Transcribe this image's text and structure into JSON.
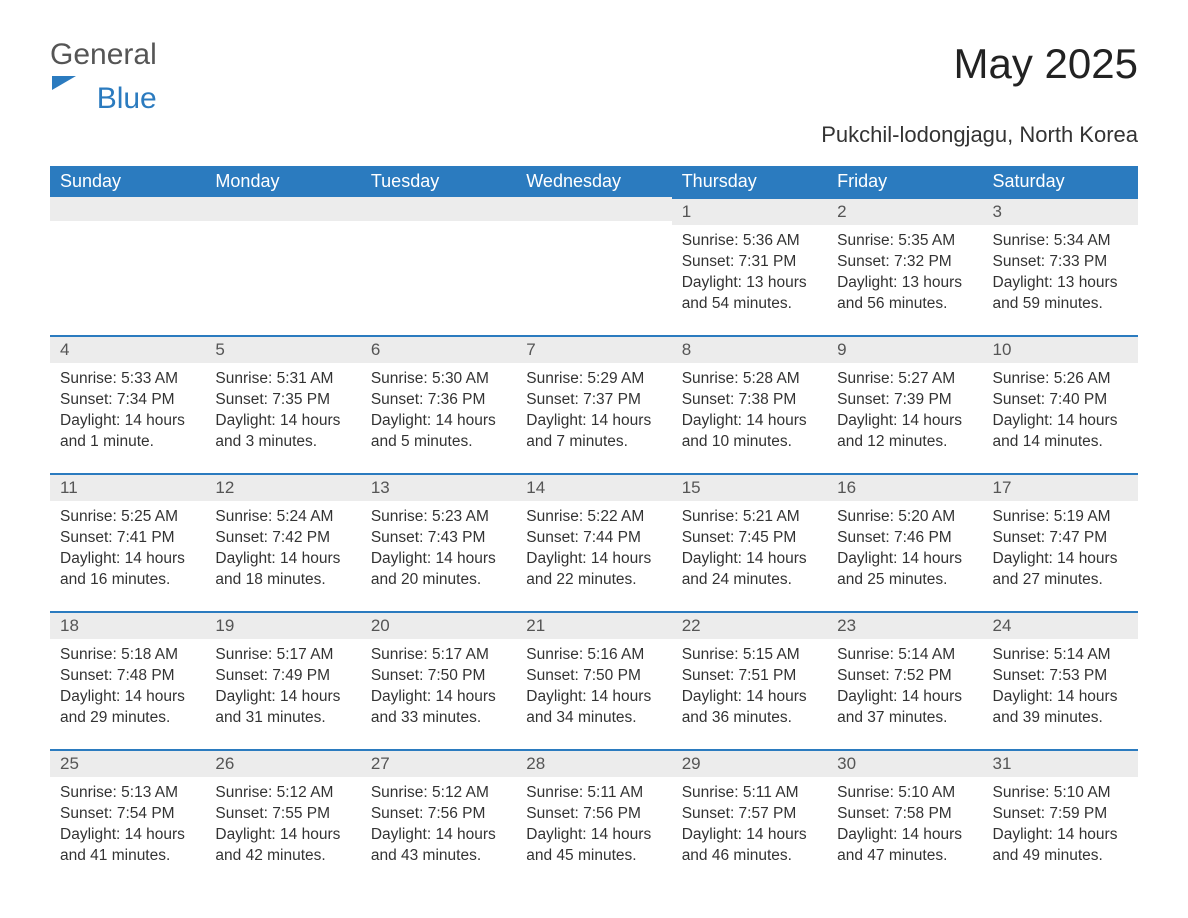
{
  "logo": {
    "text_general": "General",
    "text_blue": "Blue"
  },
  "title": "May 2025",
  "location": "Pukchil-lodongjagu, North Korea",
  "colors": {
    "accent": "#2b7bbf",
    "day_bar_bg": "#ececec",
    "text": "#333333",
    "header_text": "#ffffff",
    "background": "#ffffff"
  },
  "typography": {
    "title_fontsize": 42,
    "subtitle_fontsize": 22,
    "header_fontsize": 18,
    "daynum_fontsize": 17,
    "body_fontsize": 15.5
  },
  "calendar": {
    "columns": [
      "Sunday",
      "Monday",
      "Tuesday",
      "Wednesday",
      "Thursday",
      "Friday",
      "Saturday"
    ],
    "weeks": [
      [
        null,
        null,
        null,
        null,
        {
          "day": "1",
          "sunrise": "Sunrise: 5:36 AM",
          "sunset": "Sunset: 7:31 PM",
          "daylight": "Daylight: 13 hours and 54 minutes."
        },
        {
          "day": "2",
          "sunrise": "Sunrise: 5:35 AM",
          "sunset": "Sunset: 7:32 PM",
          "daylight": "Daylight: 13 hours and 56 minutes."
        },
        {
          "day": "3",
          "sunrise": "Sunrise: 5:34 AM",
          "sunset": "Sunset: 7:33 PM",
          "daylight": "Daylight: 13 hours and 59 minutes."
        }
      ],
      [
        {
          "day": "4",
          "sunrise": "Sunrise: 5:33 AM",
          "sunset": "Sunset: 7:34 PM",
          "daylight": "Daylight: 14 hours and 1 minute."
        },
        {
          "day": "5",
          "sunrise": "Sunrise: 5:31 AM",
          "sunset": "Sunset: 7:35 PM",
          "daylight": "Daylight: 14 hours and 3 minutes."
        },
        {
          "day": "6",
          "sunrise": "Sunrise: 5:30 AM",
          "sunset": "Sunset: 7:36 PM",
          "daylight": "Daylight: 14 hours and 5 minutes."
        },
        {
          "day": "7",
          "sunrise": "Sunrise: 5:29 AM",
          "sunset": "Sunset: 7:37 PM",
          "daylight": "Daylight: 14 hours and 7 minutes."
        },
        {
          "day": "8",
          "sunrise": "Sunrise: 5:28 AM",
          "sunset": "Sunset: 7:38 PM",
          "daylight": "Daylight: 14 hours and 10 minutes."
        },
        {
          "day": "9",
          "sunrise": "Sunrise: 5:27 AM",
          "sunset": "Sunset: 7:39 PM",
          "daylight": "Daylight: 14 hours and 12 minutes."
        },
        {
          "day": "10",
          "sunrise": "Sunrise: 5:26 AM",
          "sunset": "Sunset: 7:40 PM",
          "daylight": "Daylight: 14 hours and 14 minutes."
        }
      ],
      [
        {
          "day": "11",
          "sunrise": "Sunrise: 5:25 AM",
          "sunset": "Sunset: 7:41 PM",
          "daylight": "Daylight: 14 hours and 16 minutes."
        },
        {
          "day": "12",
          "sunrise": "Sunrise: 5:24 AM",
          "sunset": "Sunset: 7:42 PM",
          "daylight": "Daylight: 14 hours and 18 minutes."
        },
        {
          "day": "13",
          "sunrise": "Sunrise: 5:23 AM",
          "sunset": "Sunset: 7:43 PM",
          "daylight": "Daylight: 14 hours and 20 minutes."
        },
        {
          "day": "14",
          "sunrise": "Sunrise: 5:22 AM",
          "sunset": "Sunset: 7:44 PM",
          "daylight": "Daylight: 14 hours and 22 minutes."
        },
        {
          "day": "15",
          "sunrise": "Sunrise: 5:21 AM",
          "sunset": "Sunset: 7:45 PM",
          "daylight": "Daylight: 14 hours and 24 minutes."
        },
        {
          "day": "16",
          "sunrise": "Sunrise: 5:20 AM",
          "sunset": "Sunset: 7:46 PM",
          "daylight": "Daylight: 14 hours and 25 minutes."
        },
        {
          "day": "17",
          "sunrise": "Sunrise: 5:19 AM",
          "sunset": "Sunset: 7:47 PM",
          "daylight": "Daylight: 14 hours and 27 minutes."
        }
      ],
      [
        {
          "day": "18",
          "sunrise": "Sunrise: 5:18 AM",
          "sunset": "Sunset: 7:48 PM",
          "daylight": "Daylight: 14 hours and 29 minutes."
        },
        {
          "day": "19",
          "sunrise": "Sunrise: 5:17 AM",
          "sunset": "Sunset: 7:49 PM",
          "daylight": "Daylight: 14 hours and 31 minutes."
        },
        {
          "day": "20",
          "sunrise": "Sunrise: 5:17 AM",
          "sunset": "Sunset: 7:50 PM",
          "daylight": "Daylight: 14 hours and 33 minutes."
        },
        {
          "day": "21",
          "sunrise": "Sunrise: 5:16 AM",
          "sunset": "Sunset: 7:50 PM",
          "daylight": "Daylight: 14 hours and 34 minutes."
        },
        {
          "day": "22",
          "sunrise": "Sunrise: 5:15 AM",
          "sunset": "Sunset: 7:51 PM",
          "daylight": "Daylight: 14 hours and 36 minutes."
        },
        {
          "day": "23",
          "sunrise": "Sunrise: 5:14 AM",
          "sunset": "Sunset: 7:52 PM",
          "daylight": "Daylight: 14 hours and 37 minutes."
        },
        {
          "day": "24",
          "sunrise": "Sunrise: 5:14 AM",
          "sunset": "Sunset: 7:53 PM",
          "daylight": "Daylight: 14 hours and 39 minutes."
        }
      ],
      [
        {
          "day": "25",
          "sunrise": "Sunrise: 5:13 AM",
          "sunset": "Sunset: 7:54 PM",
          "daylight": "Daylight: 14 hours and 41 minutes."
        },
        {
          "day": "26",
          "sunrise": "Sunrise: 5:12 AM",
          "sunset": "Sunset: 7:55 PM",
          "daylight": "Daylight: 14 hours and 42 minutes."
        },
        {
          "day": "27",
          "sunrise": "Sunrise: 5:12 AM",
          "sunset": "Sunset: 7:56 PM",
          "daylight": "Daylight: 14 hours and 43 minutes."
        },
        {
          "day": "28",
          "sunrise": "Sunrise: 5:11 AM",
          "sunset": "Sunset: 7:56 PM",
          "daylight": "Daylight: 14 hours and 45 minutes."
        },
        {
          "day": "29",
          "sunrise": "Sunrise: 5:11 AM",
          "sunset": "Sunset: 7:57 PM",
          "daylight": "Daylight: 14 hours and 46 minutes."
        },
        {
          "day": "30",
          "sunrise": "Sunrise: 5:10 AM",
          "sunset": "Sunset: 7:58 PM",
          "daylight": "Daylight: 14 hours and 47 minutes."
        },
        {
          "day": "31",
          "sunrise": "Sunrise: 5:10 AM",
          "sunset": "Sunset: 7:59 PM",
          "daylight": "Daylight: 14 hours and 49 minutes."
        }
      ]
    ]
  }
}
